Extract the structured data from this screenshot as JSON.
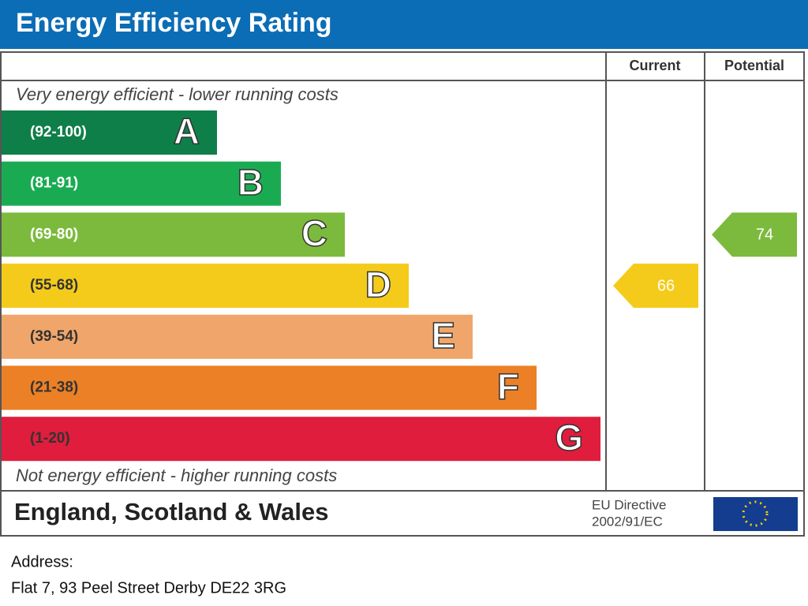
{
  "header": {
    "title": "Energy Efficiency Rating"
  },
  "columns": {
    "current": "Current",
    "potential": "Potential"
  },
  "top_note": "Very energy efficient - lower running costs",
  "bottom_note": "Not energy efficient - higher running costs",
  "bands": [
    {
      "range": "(92-100)",
      "letter": "A",
      "min": 92,
      "max": 100,
      "color": "#0f7f4a"
    },
    {
      "range": "(81-91)",
      "letter": "B",
      "min": 81,
      "max": 91,
      "color": "#1aab52"
    },
    {
      "range": "(69-80)",
      "letter": "C",
      "min": 69,
      "max": 80,
      "color": "#7cba3d"
    },
    {
      "range": "(55-68)",
      "letter": "D",
      "min": 55,
      "max": 68,
      "color": "#f4cb1a"
    },
    {
      "range": "(39-54)",
      "letter": "E",
      "min": 39,
      "max": 54,
      "color": "#f0a66a"
    },
    {
      "range": "(21-38)",
      "letter": "F",
      "min": 21,
      "max": 38,
      "color": "#ec8026"
    },
    {
      "range": "(1-20)",
      "letter": "G",
      "min": 1,
      "max": 20,
      "color": "#e01d3c"
    }
  ],
  "current": {
    "value": 66
  },
  "potential": {
    "value": 74
  },
  "footer": {
    "region": "England, Scotland & Wales",
    "directive_line1": "EU Directive",
    "directive_line2": "2002/91/EC"
  },
  "address": {
    "label": "Address:",
    "text": "Flat 7,  93 Peel Street Derby DE22 3RG"
  }
}
